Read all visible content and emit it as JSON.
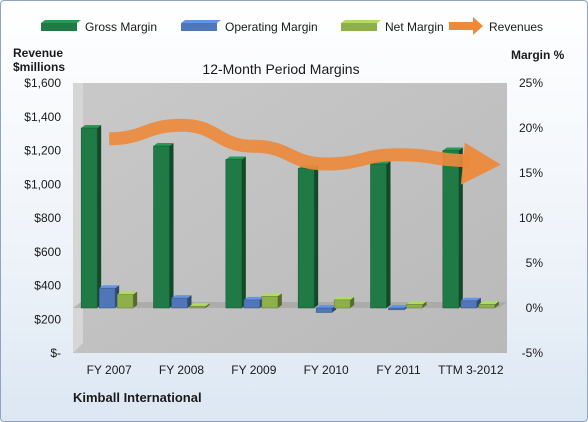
{
  "chart_data": {
    "type": "bar",
    "title": "12-Month Period Margins",
    "left_axis_label": [
      "Revenue",
      "$millions"
    ],
    "right_axis_label": "Margin %",
    "footer": "Kimball International",
    "categories": [
      "FY 2007",
      "FY 2008",
      "FY 2009",
      "FY 2010",
      "FY 2011",
      "TTM 3-2012"
    ],
    "left_axis": {
      "min": 0,
      "max": 1600,
      "step": 200,
      "tick_labels": [
        "$-",
        "$200",
        "$400",
        "$600",
        "$800",
        "$1,000",
        "$1,200",
        "$1,400",
        "$1,600"
      ]
    },
    "right_axis": {
      "min": -5,
      "max": 25,
      "step": 5,
      "tick_labels": [
        "-5%",
        "0%",
        "5%",
        "10%",
        "15%",
        "20%",
        "25%"
      ]
    },
    "series": [
      {
        "name": "Gross Margin",
        "kind": "bar",
        "axis": "right",
        "color": "#1f7a45",
        "values": [
          20,
          18,
          16.5,
          15.5,
          16,
          17.5
        ]
      },
      {
        "name": "Operating Margin",
        "kind": "bar",
        "axis": "right",
        "color": "#4f76b8",
        "values": [
          2.2,
          1.1,
          0.9,
          -0.5,
          -0.2,
          0.8
        ]
      },
      {
        "name": "Net Margin",
        "kind": "bar",
        "axis": "right",
        "color": "#8db04a",
        "values": [
          1.5,
          0.2,
          1.3,
          0.9,
          0.4,
          0.4
        ]
      },
      {
        "name": "Revenues",
        "kind": "arrow",
        "axis": "left",
        "color": "#ec8a3c",
        "values": [
          1270,
          1350,
          1225,
          1120,
          1175,
          1140
        ]
      }
    ],
    "legend_position": "top",
    "grid": false
  }
}
